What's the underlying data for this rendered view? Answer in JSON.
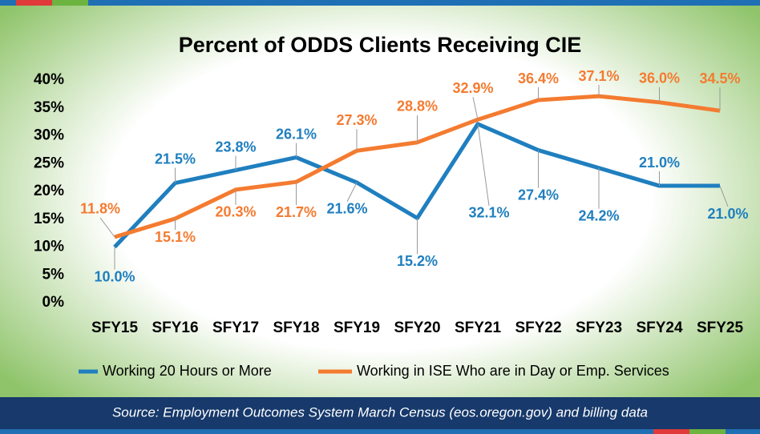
{
  "chart_data": {
    "type": "line",
    "title": "Percent of ODDS Clients Receiving CIE",
    "categories": [
      "SFY15",
      "SFY16",
      "SFY17",
      "SFY18",
      "SFY19",
      "SFY20",
      "SFY21",
      "SFY22",
      "SFY23",
      "SFY24",
      "SFY25"
    ],
    "series": [
      {
        "name": "Working 20 Hours or More",
        "color": "#1f7fbf",
        "values": [
          10.0,
          21.5,
          23.8,
          26.1,
          21.6,
          15.2,
          32.1,
          27.4,
          24.2,
          21.0,
          21.0
        ],
        "value_labels": [
          "10.0%",
          "21.5%",
          "23.8%",
          "26.1%",
          "21.6%",
          "15.2%",
          "32.1%",
          "27.4%",
          "24.2%",
          "21.0%",
          "21.0%"
        ]
      },
      {
        "name": "Working in ISE Who are in Day or Emp. Services",
        "color": "#f47b30",
        "values": [
          11.8,
          15.1,
          20.3,
          21.7,
          27.3,
          28.8,
          32.9,
          36.4,
          37.1,
          36.0,
          34.5
        ],
        "value_labels": [
          "11.8%",
          "15.1%",
          "20.3%",
          "21.7%",
          "27.3%",
          "28.8%",
          "32.9%",
          "36.4%",
          "37.1%",
          "36.0%",
          "34.5%"
        ]
      }
    ],
    "ylim": [
      0,
      40
    ],
    "yticks": [
      {
        "value": 0,
        "label": "0%"
      },
      {
        "value": 5,
        "label": "5%"
      },
      {
        "value": 10,
        "label": "10%"
      },
      {
        "value": 15,
        "label": "15%"
      },
      {
        "value": 20,
        "label": "20%"
      },
      {
        "value": 25,
        "label": "25%"
      },
      {
        "value": 30,
        "label": "30%"
      },
      {
        "value": 35,
        "label": "35%"
      },
      {
        "value": 40,
        "label": "40%"
      }
    ],
    "legend": "bottom",
    "source": "Source: Employment Outcomes System March Census (eos.oregon.gov) and  billing data"
  }
}
